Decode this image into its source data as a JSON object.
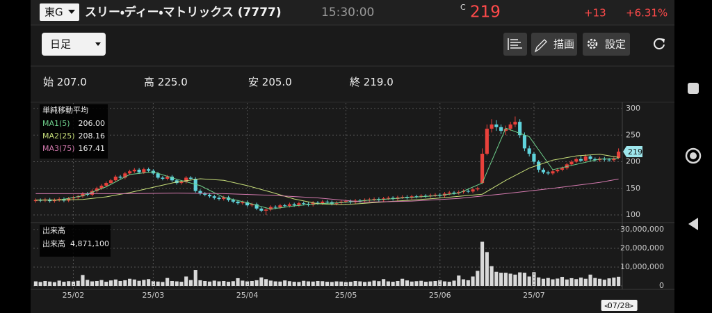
{
  "header": {
    "market": "東G",
    "name": "スリー・ディー・マトリックス (7777)",
    "time": "15:30:00",
    "price_flag": "C",
    "change": "+13",
    "change_pct": "+6.31%"
  },
  "toolbar": {
    "period": "日足",
    "draw": "描画",
    "settings": "設定"
  },
  "summary": [
    {
      "label": "始",
      "value": "207.0"
    },
    {
      "label": "高",
      "value": "225.0"
    },
    {
      "label": "安",
      "value": "205.0"
    },
    {
      "label": "終",
      "value": "219.0"
    }
  ],
  "chart_data": [
    {
      "type": "candlestick",
      "up_color": "#e8413b",
      "down_color": "#5fd3dc",
      "ylim": [
        100,
        300
      ],
      "yticks": [
        100,
        150,
        200,
        250,
        300
      ],
      "grid": true,
      "legend_title": "単純移動平均",
      "ohlc": [
        [
          126,
          131,
          123,
          128
        ],
        [
          128,
          131,
          124,
          127
        ],
        [
          127,
          132,
          124,
          129
        ],
        [
          129,
          132,
          123,
          126
        ],
        [
          126,
          131,
          123,
          128
        ],
        [
          128,
          133,
          125,
          130
        ],
        [
          130,
          133,
          124,
          127
        ],
        [
          127,
          134,
          124,
          131
        ],
        [
          131,
          136,
          128,
          133
        ],
        [
          133,
          138,
          130,
          135
        ],
        [
          135,
          143,
          132,
          140
        ],
        [
          140,
          143,
          135,
          138
        ],
        [
          138,
          148,
          135,
          145
        ],
        [
          145,
          153,
          142,
          150
        ],
        [
          150,
          158,
          147,
          155
        ],
        [
          155,
          163,
          152,
          160
        ],
        [
          160,
          168,
          157,
          165
        ],
        [
          165,
          175,
          162,
          172
        ],
        [
          172,
          175,
          167,
          170
        ],
        [
          170,
          181,
          167,
          178
        ],
        [
          178,
          185,
          175,
          182
        ],
        [
          182,
          188,
          179,
          185
        ],
        [
          185,
          188,
          177,
          180
        ],
        [
          180,
          189,
          177,
          186
        ],
        [
          186,
          189,
          180,
          183
        ],
        [
          183,
          186,
          175,
          178
        ],
        [
          178,
          181,
          167,
          170
        ],
        [
          170,
          173,
          165,
          168
        ],
        [
          168,
          175,
          165,
          172
        ],
        [
          172,
          175,
          162,
          165
        ],
        [
          165,
          168,
          157,
          160
        ],
        [
          160,
          165,
          157,
          162
        ],
        [
          162,
          173,
          159,
          170
        ],
        [
          170,
          173,
          165,
          168
        ],
        [
          168,
          171,
          142,
          145
        ],
        [
          145,
          148,
          137,
          140
        ],
        [
          140,
          143,
          135,
          138
        ],
        [
          138,
          141,
          132,
          135
        ],
        [
          135,
          138,
          129,
          132
        ],
        [
          132,
          135,
          127,
          130
        ],
        [
          130,
          136,
          127,
          133
        ],
        [
          133,
          136,
          125,
          128
        ],
        [
          128,
          131,
          122,
          125
        ],
        [
          125,
          128,
          119,
          122
        ],
        [
          122,
          127,
          119,
          124
        ],
        [
          124,
          127,
          115,
          118
        ],
        [
          118,
          123,
          115,
          120
        ],
        [
          120,
          123,
          109,
          112
        ],
        [
          112,
          115,
          105,
          108
        ],
        [
          108,
          113,
          100,
          110
        ],
        [
          110,
          118,
          107,
          115
        ],
        [
          115,
          118,
          111,
          114
        ],
        [
          114,
          121,
          111,
          118
        ],
        [
          118,
          121,
          114,
          117
        ],
        [
          117,
          123,
          114,
          120
        ],
        [
          120,
          123,
          115,
          118
        ],
        [
          118,
          125,
          115,
          122
        ],
        [
          122,
          125,
          118,
          121
        ],
        [
          121,
          124,
          116,
          119
        ],
        [
          119,
          126,
          116,
          123
        ],
        [
          123,
          126,
          119,
          122
        ],
        [
          122,
          128,
          119,
          125
        ],
        [
          125,
          128,
          121,
          124
        ],
        [
          124,
          127,
          118,
          121
        ],
        [
          121,
          126,
          118,
          123
        ],
        [
          123,
          128,
          120,
          125
        ],
        [
          125,
          129,
          122,
          126
        ],
        [
          126,
          129,
          121,
          124
        ],
        [
          124,
          130,
          121,
          127
        ],
        [
          127,
          130,
          123,
          126
        ],
        [
          126,
          131,
          123,
          128
        ],
        [
          128,
          132,
          125,
          129
        ],
        [
          129,
          133,
          126,
          130
        ],
        [
          130,
          133,
          125,
          128
        ],
        [
          128,
          134,
          125,
          131
        ],
        [
          131,
          135,
          128,
          132
        ],
        [
          132,
          135,
          127,
          130
        ],
        [
          130,
          136,
          127,
          133
        ],
        [
          133,
          137,
          130,
          134
        ],
        [
          134,
          137,
          129,
          132
        ],
        [
          132,
          138,
          129,
          135
        ],
        [
          135,
          138,
          131,
          134
        ],
        [
          134,
          139,
          131,
          136
        ],
        [
          136,
          139,
          132,
          135
        ],
        [
          135,
          140,
          132,
          137
        ],
        [
          137,
          141,
          134,
          138
        ],
        [
          138,
          141,
          133,
          136
        ],
        [
          136,
          143,
          133,
          140
        ],
        [
          140,
          145,
          137,
          142
        ],
        [
          142,
          145,
          138,
          141
        ],
        [
          141,
          146,
          138,
          143
        ],
        [
          143,
          148,
          140,
          145
        ],
        [
          145,
          148,
          141,
          144
        ],
        [
          144,
          151,
          141,
          148
        ],
        [
          148,
          153,
          145,
          150
        ],
        [
          160,
          225,
          158,
          215
        ],
        [
          215,
          270,
          212,
          262
        ],
        [
          262,
          280,
          255,
          270
        ],
        [
          270,
          278,
          258,
          265
        ],
        [
          265,
          270,
          252,
          258
        ],
        [
          258,
          268,
          250,
          262
        ],
        [
          262,
          275,
          258,
          270
        ],
        [
          270,
          285,
          265,
          275
        ],
        [
          275,
          280,
          245,
          250
        ],
        [
          250,
          255,
          220,
          225
        ],
        [
          225,
          230,
          210,
          215
        ],
        [
          215,
          218,
          195,
          200
        ],
        [
          200,
          203,
          180,
          185
        ],
        [
          185,
          188,
          177,
          180
        ],
        [
          180,
          183,
          175,
          178
        ],
        [
          178,
          185,
          175,
          182
        ],
        [
          182,
          188,
          179,
          185
        ],
        [
          185,
          191,
          182,
          188
        ],
        [
          188,
          198,
          185,
          195
        ],
        [
          195,
          203,
          192,
          200
        ],
        [
          200,
          208,
          197,
          205
        ],
        [
          205,
          212,
          199,
          202
        ],
        [
          202,
          214,
          199,
          210
        ],
        [
          210,
          213,
          202,
          205
        ],
        [
          205,
          208,
          200,
          203
        ],
        [
          203,
          209,
          200,
          206
        ],
        [
          206,
          209,
          201,
          204
        ],
        [
          204,
          207,
          200,
          203
        ],
        [
          203,
          209,
          200,
          206
        ],
        [
          207,
          225,
          205,
          219
        ]
      ],
      "series": [
        {
          "name": "MA1(5)",
          "color": "#6fd08c",
          "legend_value": "206.00",
          "x": [
            0,
            5,
            10,
            15,
            20,
            25,
            30,
            35,
            40,
            45,
            50,
            55,
            60,
            65,
            70,
            75,
            80,
            85,
            90,
            95,
            100,
            105,
            110,
            115,
            120,
            124
          ],
          "values": [
            128,
            128,
            136,
            153,
            176,
            181,
            167,
            155,
            133,
            123,
            111,
            117,
            121,
            123,
            127,
            130,
            133,
            136,
            141,
            160,
            263,
            247,
            185,
            195,
            205,
            206
          ]
        },
        {
          "name": "MA2(25)",
          "color": "#c8df7a",
          "legend_value": "208.16",
          "x": [
            0,
            5,
            10,
            15,
            20,
            25,
            30,
            35,
            40,
            45,
            50,
            55,
            60,
            65,
            70,
            75,
            80,
            85,
            90,
            95,
            100,
            105,
            110,
            115,
            120,
            124
          ],
          "values": [
            128,
            128,
            129,
            134,
            142,
            152,
            162,
            168,
            165,
            155,
            143,
            130,
            121,
            119,
            122,
            125,
            128,
            131,
            135,
            139,
            165,
            188,
            203,
            211,
            214,
            208.16
          ]
        },
        {
          "name": "MA3(75)",
          "color": "#d47aaf",
          "legend_value": "167.41",
          "x": [
            0,
            10,
            20,
            30,
            40,
            50,
            60,
            70,
            80,
            90,
            100,
            110,
            120,
            124
          ],
          "values": [
            140,
            140,
            140,
            141,
            140,
            137,
            132,
            124,
            126,
            131,
            140,
            150,
            161,
            167.41
          ]
        }
      ]
    },
    {
      "type": "bar",
      "color": "#d9d9d9",
      "legend_title": "出来高",
      "legend_name": "出来高",
      "legend_value": "4,871,100",
      "ylim": [
        0,
        30000000
      ],
      "yticks": [
        0,
        {
          "value": 10000000,
          "label": "10,000,000"
        },
        {
          "value": 20000000,
          "label": "20,000,000"
        },
        {
          "value": 30000000,
          "label": "30,000,000"
        }
      ],
      "categories": [
        null,
        null,
        null,
        null,
        null,
        null,
        null,
        null,
        "25/02",
        null,
        null,
        null,
        null,
        null,
        null,
        null,
        null,
        null,
        null,
        null,
        null,
        null,
        null,
        null,
        null,
        "25/03",
        null,
        null,
        null,
        null,
        null,
        null,
        null,
        null,
        null,
        null,
        null,
        null,
        null,
        null,
        null,
        null,
        null,
        null,
        null,
        "25/04",
        null,
        null,
        null,
        null,
        null,
        null,
        null,
        null,
        null,
        null,
        null,
        null,
        null,
        null,
        null,
        null,
        null,
        null,
        null,
        null,
        "25/05",
        null,
        null,
        null,
        null,
        null,
        null,
        null,
        null,
        null,
        null,
        null,
        null,
        null,
        null,
        null,
        null,
        null,
        null,
        null,
        "25/06",
        null,
        null,
        null,
        null,
        null,
        null,
        null,
        null,
        null,
        null,
        null,
        null,
        null,
        null,
        null,
        null,
        null,
        null,
        null,
        "25/07",
        null,
        null,
        null,
        null,
        null,
        null,
        null,
        null,
        null,
        null,
        null,
        null,
        null,
        null,
        null,
        null,
        null,
        "07/28"
      ],
      "values": [
        2400000,
        2100000,
        2600000,
        2300000,
        2000000,
        2800000,
        2200000,
        2500000,
        2300000,
        2700000,
        5800000,
        3200000,
        2400000,
        2600000,
        3100000,
        2200000,
        2900000,
        3400000,
        2600000,
        3000000,
        3800000,
        3400000,
        2700000,
        3200000,
        3600000,
        2500000,
        2300000,
        2100000,
        4200000,
        2600000,
        2400000,
        2200000,
        5000000,
        3100000,
        8500000,
        3000000,
        2600000,
        2300000,
        2800000,
        2400000,
        2600000,
        2200000,
        2500000,
        4100000,
        2800000,
        2400000,
        2600000,
        3000000,
        4500000,
        3600000,
        2800000,
        2400000,
        2300000,
        2900000,
        2500000,
        2200000,
        2100000,
        2700000,
        2400000,
        2300000,
        2600000,
        2500000,
        2200000,
        2100000,
        2400000,
        2300000,
        2000000,
        2200000,
        2600000,
        2400000,
        2100000,
        2300000,
        2800000,
        2500000,
        3600000,
        2400000,
        2200000,
        2600000,
        3800000,
        2900000,
        2300000,
        2500000,
        2700000,
        2200000,
        2400000,
        2600000,
        3000000,
        2400000,
        2200000,
        2800000,
        5500000,
        3500000,
        3000000,
        5000000,
        8000000,
        23500000,
        18000000,
        10500000,
        7500000,
        7000000,
        7000000,
        6500000,
        6000000,
        7200000,
        7000000,
        5000000,
        7300000,
        4500000,
        3800000,
        4200000,
        3500000,
        3900000,
        4800000,
        3400000,
        4100000,
        3600000,
        4400000,
        3800000,
        6000000,
        4200000,
        3800000,
        3300000,
        4000000,
        4400000,
        4871100
      ]
    }
  ]
}
